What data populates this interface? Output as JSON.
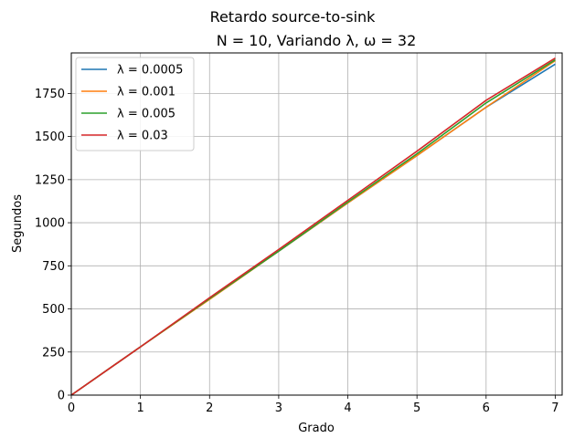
{
  "chart_data": {
    "type": "line",
    "suptitle": "Retardo source-to-sink",
    "title": "N = 10, Variando λ, ω = 32",
    "xlabel": "Grado",
    "ylabel": "Segundos",
    "xlim": [
      0,
      7.1
    ],
    "ylim": [
      0,
      1985
    ],
    "xticks": [
      0,
      1,
      2,
      3,
      4,
      5,
      6,
      7
    ],
    "yticks": [
      0,
      250,
      500,
      750,
      1000,
      1250,
      1500,
      1750
    ],
    "grid": true,
    "legend_position": "top-left",
    "x": [
      0,
      1,
      2,
      3,
      4,
      5,
      6,
      7
    ],
    "series": [
      {
        "name": "λ = 0.0005",
        "color": "#1f77b4",
        "values": [
          0,
          280,
          560,
          835,
          1115,
          1390,
          1670,
          1920
        ]
      },
      {
        "name": "λ = 0.001",
        "color": "#ff7f0e",
        "values": [
          0,
          280,
          555,
          835,
          1115,
          1390,
          1670,
          1940
        ]
      },
      {
        "name": "λ = 0.005",
        "color": "#2ca02c",
        "values": [
          0,
          280,
          560,
          835,
          1120,
          1400,
          1695,
          1945
        ]
      },
      {
        "name": "λ = 0.03",
        "color": "#d62728",
        "values": [
          0,
          280,
          565,
          845,
          1130,
          1415,
          1710,
          1955
        ]
      }
    ]
  }
}
